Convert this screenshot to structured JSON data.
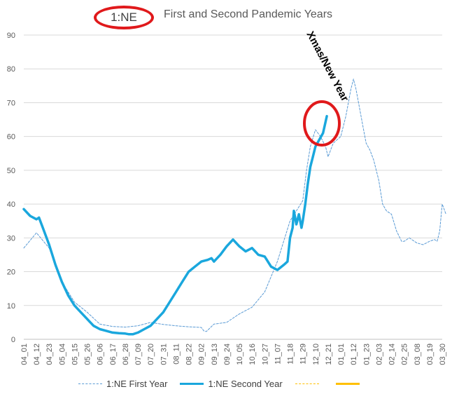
{
  "title_badge": "1:NE",
  "title": "First and Second Pandemic Years",
  "annotation": "Xmas/New Year",
  "colors": {
    "first_year": "#5b9bd5",
    "second_year": "#1aa7dd",
    "third_series": "#ffc000",
    "highlight": "#e0191b",
    "grid": "#d9d9d9",
    "axis_text": "#595959"
  },
  "legend": [
    {
      "label": "1:NE First Year",
      "style": "dashed",
      "color": "#5b9bd5"
    },
    {
      "label": "1:NE Second Year",
      "style": "solid-thick",
      "color": "#1aa7dd"
    },
    {
      "label": "",
      "style": "dashed-thin",
      "color": "#ffc000"
    },
    {
      "label": "",
      "style": "solid-thick",
      "color": "#ffc000"
    }
  ],
  "chart_data": {
    "type": "line",
    "title": "First and Second Pandemic Years",
    "ylim": [
      0,
      90
    ],
    "yticks": [
      0,
      10,
      20,
      30,
      40,
      50,
      60,
      70,
      80,
      90
    ],
    "grid": true,
    "legend_position": "bottom",
    "x_tick_labels": [
      "04_01",
      "04_12",
      "04_23",
      "05_04",
      "05_15",
      "05_26",
      "06_06",
      "06_17",
      "06_28",
      "07_09",
      "07_20",
      "07_31",
      "08_11",
      "08_22",
      "09_02",
      "09_13",
      "09_24",
      "10_05",
      "10_16",
      "10_27",
      "11_07",
      "11_18",
      "11_29",
      "12_10",
      "12_21",
      "01_01",
      "01_12",
      "01_23",
      "02_03",
      "02_14",
      "02_25",
      "03_08",
      "03_19",
      "03_30"
    ],
    "series": [
      {
        "name": "1:NE First Year",
        "style": "dashed",
        "x": [
          0,
          1,
          2,
          3,
          4,
          5,
          6,
          7,
          8,
          9,
          10,
          11,
          12,
          13,
          14,
          14.2,
          14.4,
          15,
          16,
          17,
          18,
          19,
          20,
          21,
          22,
          22.3,
          22.6,
          23,
          23.4,
          23.8,
          24,
          24.4,
          25,
          25.4,
          25.8,
          26,
          26.2,
          26.4,
          26.6,
          26.8,
          27,
          27.3,
          27.6,
          28,
          28.3,
          28.6,
          29,
          29.4,
          29.8,
          30,
          30.4,
          31,
          31.5,
          32,
          32.4,
          32.6,
          32.8,
          33,
          33.3
        ],
        "values": [
          27,
          31.5,
          27,
          17,
          11,
          8,
          4.5,
          3.8,
          3.6,
          4,
          5,
          4.4,
          4,
          3.7,
          3.5,
          2.5,
          2.3,
          4.5,
          5,
          7.5,
          9.5,
          14,
          23,
          35,
          41,
          50,
          57,
          62,
          60,
          57,
          54,
          58,
          60,
          66,
          74,
          77,
          74,
          70,
          66,
          62,
          58,
          56,
          53,
          47,
          40,
          38,
          37,
          32,
          29,
          29,
          30,
          28.5,
          28,
          29,
          29.5,
          29,
          32,
          40,
          37
        ]
      },
      {
        "name": "1:NE Second Year",
        "style": "solid",
        "x": [
          0,
          0.5,
          1,
          1.2,
          1.5,
          2,
          2.5,
          3,
          3.5,
          4,
          4.5,
          5,
          5.5,
          6,
          6.5,
          7,
          7.5,
          8,
          8.3,
          8.6,
          9,
          9.5,
          10,
          10.5,
          11,
          11.5,
          12,
          12.5,
          13,
          13.5,
          14,
          14.5,
          14.8,
          15,
          15.5,
          16,
          16.5,
          17,
          17.5,
          18,
          18.5,
          19,
          19.5,
          20,
          20.5,
          20.8,
          21,
          21.2,
          21.3,
          21.5,
          21.7,
          21.9,
          22,
          22.2,
          22.4,
          22.6,
          22.8,
          23,
          23.3,
          23.6,
          23.9
        ],
        "values": [
          38.5,
          36.5,
          35.5,
          36,
          33,
          28,
          22,
          17,
          13,
          10,
          8,
          6,
          4,
          3,
          2.5,
          2,
          1.8,
          1.7,
          1.5,
          1.5,
          2,
          3,
          4,
          6,
          8,
          11,
          14,
          17,
          20,
          21.5,
          23,
          23.5,
          24,
          23,
          25,
          27.5,
          29.5,
          27.5,
          26,
          27,
          25,
          24.5,
          21.5,
          20.5,
          22,
          23,
          30,
          33,
          38,
          34,
          37,
          33,
          35,
          40,
          46,
          51,
          54,
          57,
          59,
          61,
          66
        ]
      },
      {
        "name": "",
        "style": "dashed-thin",
        "x": [],
        "values": []
      },
      {
        "name": "",
        "style": "solid-thick",
        "x": [],
        "values": []
      }
    ]
  }
}
